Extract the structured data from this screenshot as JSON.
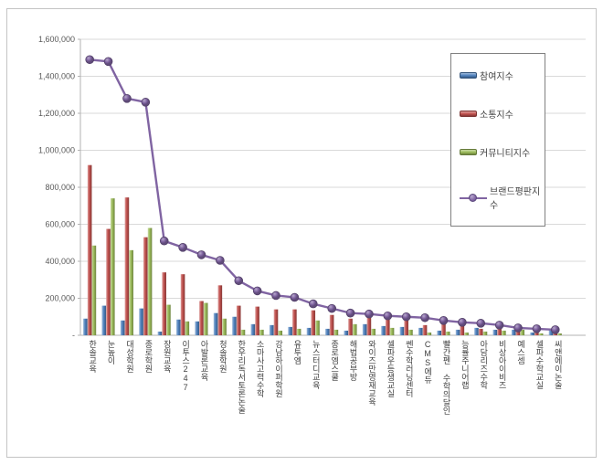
{
  "chart_data": {
    "type": "bar",
    "note": "clustered bar chart with overlaid line series (Korean education brand reputation index chart)",
    "categories": [
      "한솔교육",
      "눈높이",
      "대성학원",
      "종로학원",
      "장원교육",
      "이투스247",
      "아발론교육",
      "청솔학원",
      "한우리독서토론논술",
      "소마사고력수학",
      "강남하이퍼학원",
      "유투엠",
      "뉴스터디교육",
      "종로엠스쿨",
      "해법공부방",
      "와이즈만영재교육",
      "셀파우등생교실",
      "쎈수학러닝센터",
      "CMS에듀",
      "빨간펜 수학의달인",
      "능률주니어랩",
      "아담리즈수학",
      "비상아이비즈",
      "예스셈",
      "셀파수학교실",
      "씨앤에이논술"
    ],
    "series": [
      {
        "name": "참여지수",
        "type": "bar",
        "color": "#4F81BD",
        "values": [
          90000,
          160000,
          80000,
          145000,
          20000,
          85000,
          75000,
          120000,
          100000,
          60000,
          55000,
          45000,
          40000,
          35000,
          25000,
          60000,
          50000,
          45000,
          40000,
          25000,
          30000,
          40000,
          30000,
          30000,
          15000,
          35000
        ]
      },
      {
        "name": "소통지수",
        "type": "bar",
        "color": "#C0504D",
        "values": [
          920000,
          575000,
          745000,
          530000,
          340000,
          330000,
          185000,
          270000,
          160000,
          155000,
          140000,
          140000,
          135000,
          110000,
          90000,
          95000,
          85000,
          90000,
          55000,
          65000,
          65000,
          35000,
          40000,
          20000,
          20000,
          15000
        ]
      },
      {
        "name": "커뮤니티지수",
        "type": "bar",
        "color": "#9BBB59",
        "values": [
          485000,
          740000,
          460000,
          580000,
          165000,
          75000,
          175000,
          90000,
          30000,
          30000,
          25000,
          35000,
          80000,
          30000,
          60000,
          35000,
          40000,
          30000,
          15000,
          20000,
          15000,
          20000,
          25000,
          30000,
          10000,
          10000
        ]
      },
      {
        "name": "브랜드평판지수",
        "type": "line",
        "color": "#8064A2",
        "values": [
          1490000,
          1480000,
          1280000,
          1260000,
          510000,
          475000,
          435000,
          405000,
          295000,
          240000,
          215000,
          205000,
          170000,
          145000,
          120000,
          115000,
          105000,
          100000,
          95000,
          80000,
          70000,
          65000,
          55000,
          40000,
          35000,
          30000
        ]
      }
    ],
    "xlabel": "",
    "ylabel": "",
    "ylim": [
      0,
      1600000
    ],
    "ytick_step": 200000,
    "ytick_labels_top_down": [
      "1,600,000",
      "1,400,000",
      "1,200,000",
      "1,000,000",
      "800,000",
      "600,000",
      "400,000",
      "200,000",
      "-"
    ],
    "grid": "horizontal",
    "legend_position": "upper-right-inside"
  },
  "legend": {
    "items": [
      {
        "label": "참여지수",
        "color": "#4F81BD",
        "marker": "bar"
      },
      {
        "label": "소통지수",
        "color": "#C0504D",
        "marker": "bar"
      },
      {
        "label": "커뮤니티지수",
        "color": "#9BBB59",
        "marker": "bar"
      },
      {
        "label": "브랜드평판지수",
        "color": "#8064A2",
        "marker": "line-dot"
      }
    ]
  },
  "colors": {
    "participation_blue": "#4F81BD",
    "communication_red": "#C0504D",
    "community_green": "#9BBB59",
    "brand_purple": "#8064A2",
    "gridline": "#d9d9d9",
    "axis": "#b3b3b3",
    "tick_text": "#595959",
    "category_text": "#404040",
    "frame_border": "#c4c4c4",
    "legend_border": "#808080"
  }
}
